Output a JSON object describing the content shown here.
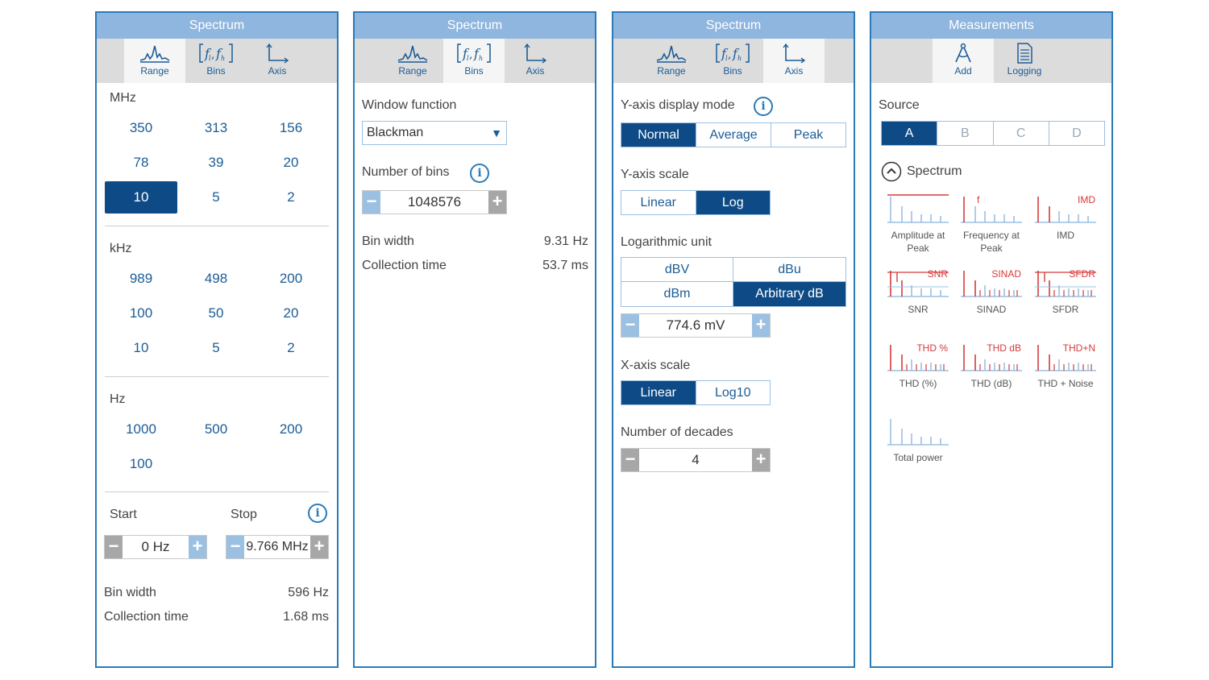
{
  "panel_range": {
    "title": "Spectrum",
    "tabs": [
      {
        "label": "Range",
        "icon": "spectrum-peaks-icon"
      },
      {
        "label": "Bins",
        "icon": "bins-bracket-icon"
      },
      {
        "label": "Axis",
        "icon": "axis-icon"
      }
    ],
    "mhz_label": "MHz",
    "mhz_values": [
      "350",
      "313",
      "156",
      "78",
      "39",
      "20",
      "10",
      "5",
      "2"
    ],
    "khz_label": "kHz",
    "khz_values": [
      "989",
      "498",
      "200",
      "100",
      "50",
      "20",
      "10",
      "5",
      "2"
    ],
    "hz_label": "Hz",
    "hz_values": [
      "1000",
      "500",
      "200",
      "100"
    ],
    "start_label": "Start",
    "stop_label": "Stop",
    "start_value": "0 Hz",
    "stop_value": "9.766 MHz",
    "bin_width_label": "Bin width",
    "bin_width_value": "596 Hz",
    "collection_time_label": "Collection time",
    "collection_time_value": "1.68 ms"
  },
  "panel_bins": {
    "title": "Spectrum",
    "tabs": [
      {
        "label": "Range"
      },
      {
        "label": "Bins"
      },
      {
        "label": "Axis"
      }
    ],
    "window_function_label": "Window function",
    "window_function_value": "Blackman",
    "number_of_bins_label": "Number of bins",
    "number_of_bins_value": "1048576",
    "bin_width_label": "Bin width",
    "bin_width_value": "9.31 Hz",
    "collection_time_label": "Collection time",
    "collection_time_value": "53.7 ms"
  },
  "panel_axis": {
    "title": "Spectrum",
    "tabs": [
      {
        "label": "Range"
      },
      {
        "label": "Bins"
      },
      {
        "label": "Axis"
      }
    ],
    "y_display_mode_label": "Y-axis display mode",
    "y_display_modes": [
      "Normal",
      "Average",
      "Peak"
    ],
    "y_scale_label": "Y-axis scale",
    "y_scales": [
      "Linear",
      "Log"
    ],
    "log_unit_label": "Logarithmic unit",
    "log_units": [
      "dBV",
      "dBu",
      "dBm",
      "Arbitrary dB"
    ],
    "reference_value": "774.6 mV",
    "x_scale_label": "X-axis scale",
    "x_scales": [
      "Linear",
      "Log10"
    ],
    "decades_label": "Number of decades",
    "decades_value": "4"
  },
  "panel_measurements": {
    "title": "Measurements",
    "tabs": [
      {
        "label": "Add",
        "icon": "compass-icon"
      },
      {
        "label": "Logging",
        "icon": "document-icon"
      }
    ],
    "source_label": "Source",
    "sources": [
      "A",
      "B",
      "C",
      "D"
    ],
    "spectrum_section_label": "Spectrum",
    "items": [
      {
        "label": "Amplitude at Peak",
        "tag": ""
      },
      {
        "label": "Frequency at Peak",
        "tag": "f"
      },
      {
        "label": "IMD",
        "tag": "IMD"
      },
      {
        "label": "SNR",
        "tag": "SNR"
      },
      {
        "label": "SINAD",
        "tag": "SINAD"
      },
      {
        "label": "SFDR",
        "tag": "SFDR"
      },
      {
        "label": "THD (%)",
        "tag": "THD %"
      },
      {
        "label": "THD (dB)",
        "tag": "THD dB"
      },
      {
        "label": "THD + Noise",
        "tag": "THD+N"
      },
      {
        "label": "Total power",
        "tag": ""
      }
    ]
  },
  "colors": {
    "accent": "#0e4b86",
    "title_bar": "#8fb6de",
    "border": "#2a7ab8",
    "measurement_red": "#d63a3a"
  }
}
